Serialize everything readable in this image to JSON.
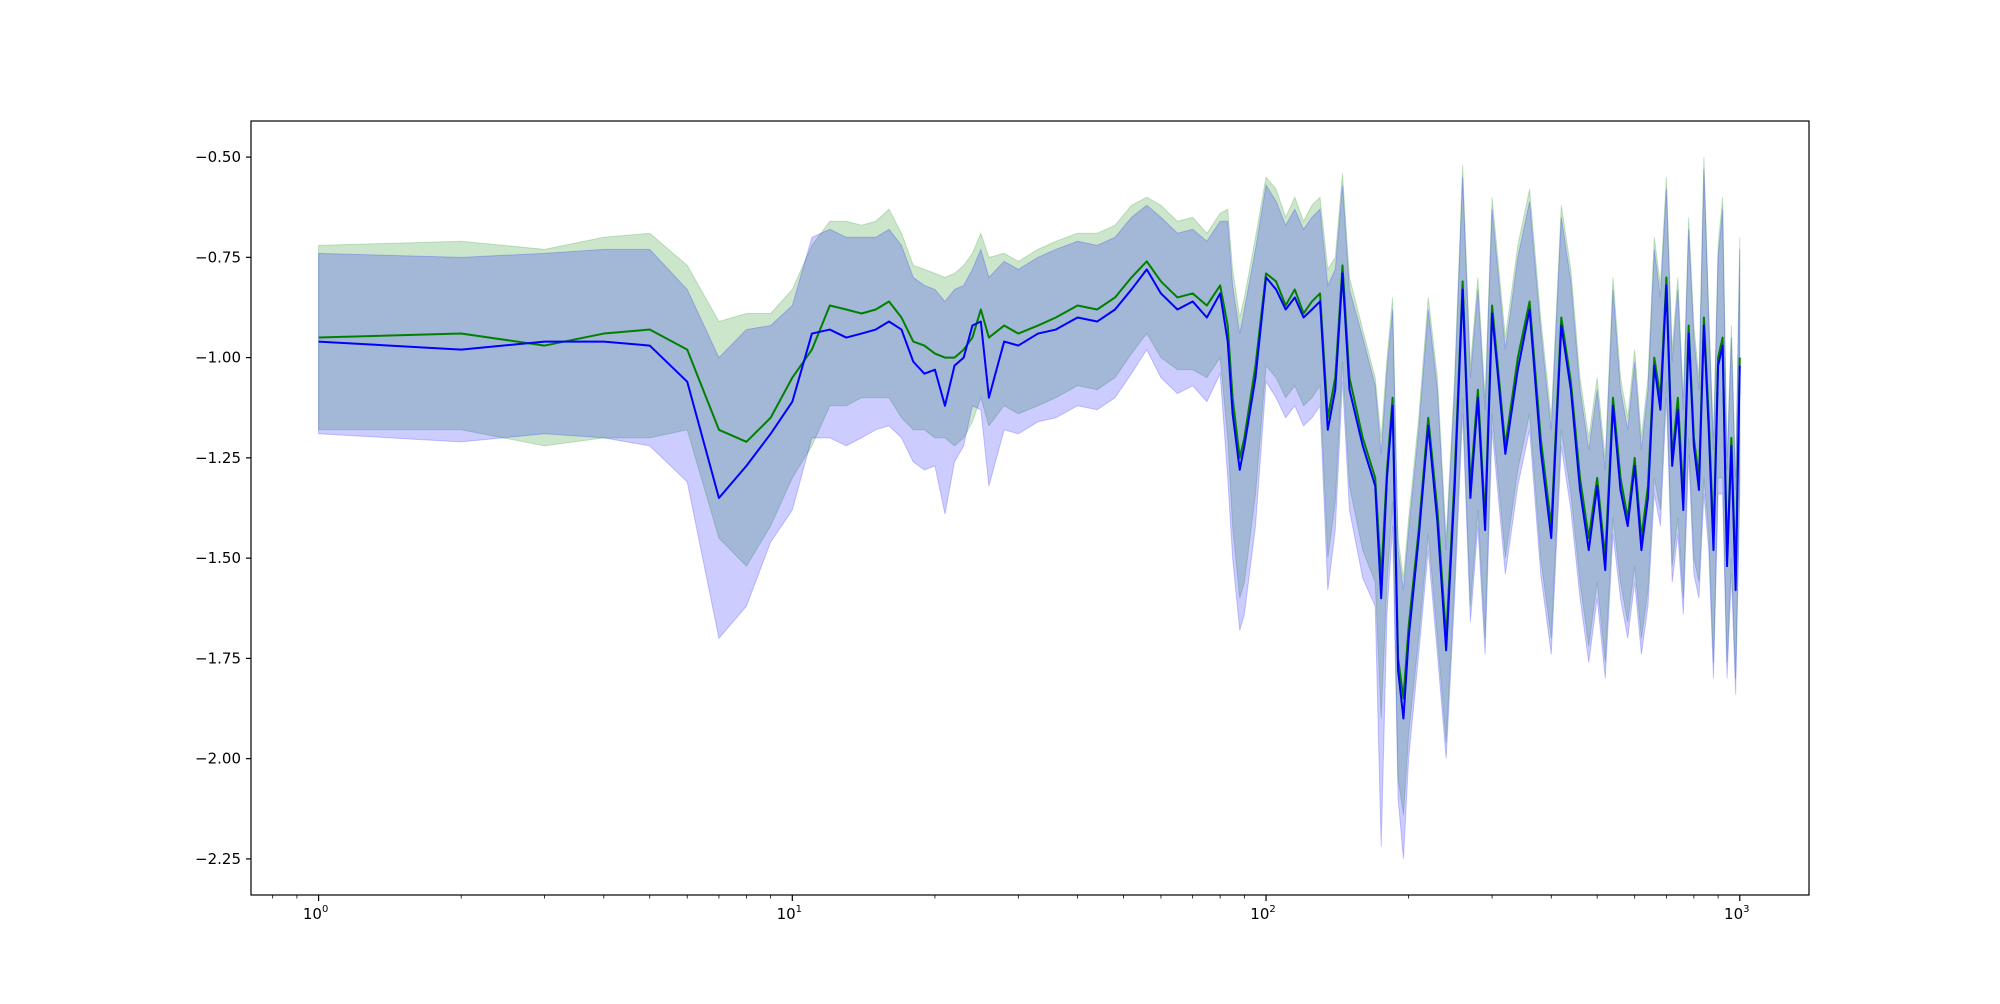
{
  "chart_data": {
    "type": "line",
    "title": "",
    "xlabel": "",
    "ylabel": "",
    "x_scale": "log",
    "xlim": [
      0.72,
      1400
    ],
    "ylim": [
      -2.34,
      -0.41
    ],
    "grid": false,
    "legend": "none",
    "y_ticks": [
      {
        "value": -0.5,
        "label": "−0.50"
      },
      {
        "value": -0.75,
        "label": "−0.75"
      },
      {
        "value": -1.0,
        "label": "−1.00"
      },
      {
        "value": -1.25,
        "label": "−1.25"
      },
      {
        "value": -1.5,
        "label": "−1.50"
      },
      {
        "value": -1.75,
        "label": "−1.75"
      },
      {
        "value": -2.0,
        "label": "−2.00"
      },
      {
        "value": -2.25,
        "label": "−2.25"
      }
    ],
    "x_ticks": [
      {
        "value": 1,
        "base": "10",
        "exp": "0"
      },
      {
        "value": 10,
        "base": "10",
        "exp": "1"
      },
      {
        "value": 100,
        "base": "10",
        "exp": "2"
      },
      {
        "value": 1000,
        "base": "10",
        "exp": "3"
      }
    ],
    "series": [
      {
        "color": "#008000",
        "band_color": "#008000",
        "band_opacity": 0.2,
        "x": [
          1,
          2,
          3,
          4,
          5,
          6,
          7,
          8,
          9,
          10,
          11,
          12,
          13,
          14,
          15,
          16,
          17,
          18,
          19,
          20,
          21,
          22,
          23,
          24,
          25,
          26,
          28,
          30,
          33,
          36,
          40,
          44,
          48,
          52,
          56,
          60,
          65,
          70,
          75,
          80,
          83,
          85,
          88,
          90,
          95,
          100,
          105,
          110,
          115,
          120,
          125,
          130,
          135,
          140,
          145,
          150,
          160,
          170,
          175,
          180,
          185,
          190,
          195,
          200,
          210,
          220,
          230,
          240,
          250,
          260,
          270,
          280,
          290,
          300,
          320,
          340,
          360,
          380,
          400,
          420,
          440,
          460,
          480,
          500,
          520,
          540,
          560,
          580,
          600,
          620,
          640,
          660,
          680,
          700,
          720,
          740,
          760,
          780,
          800,
          820,
          840,
          860,
          880,
          900,
          920,
          940,
          960,
          980,
          1000
        ],
        "y": [
          -0.95,
          -0.94,
          -0.97,
          -0.94,
          -0.93,
          -0.98,
          -1.18,
          -1.21,
          -1.15,
          -1.05,
          -0.98,
          -0.87,
          -0.88,
          -0.89,
          -0.88,
          -0.86,
          -0.9,
          -0.96,
          -0.97,
          -0.99,
          -1.0,
          -1.0,
          -0.98,
          -0.95,
          -0.88,
          -0.95,
          -0.92,
          -0.94,
          -0.92,
          -0.9,
          -0.87,
          -0.88,
          -0.85,
          -0.8,
          -0.76,
          -0.81,
          -0.85,
          -0.84,
          -0.87,
          -0.82,
          -0.92,
          -1.1,
          -1.25,
          -1.2,
          -1.02,
          -0.79,
          -0.81,
          -0.87,
          -0.83,
          -0.89,
          -0.86,
          -0.84,
          -1.15,
          -1.05,
          -0.77,
          -1.05,
          -1.2,
          -1.3,
          -1.55,
          -1.28,
          -1.1,
          -1.75,
          -1.85,
          -1.67,
          -1.43,
          -1.15,
          -1.38,
          -1.7,
          -1.3,
          -0.81,
          -1.32,
          -1.08,
          -1.4,
          -0.87,
          -1.22,
          -1.0,
          -0.86,
          -1.2,
          -1.42,
          -0.9,
          -1.06,
          -1.3,
          -1.45,
          -1.3,
          -1.5,
          -1.1,
          -1.3,
          -1.4,
          -1.25,
          -1.45,
          -1.32,
          -1.0,
          -1.1,
          -0.8,
          -1.25,
          -1.1,
          -1.35,
          -0.92,
          -1.2,
          -1.3,
          -0.9,
          -1.15,
          -1.45,
          -1.0,
          -0.95,
          -1.5,
          -1.2,
          -1.55,
          -1.0
        ],
        "upper": [
          -0.72,
          -0.71,
          -0.73,
          -0.7,
          -0.69,
          -0.77,
          -0.91,
          -0.89,
          -0.89,
          -0.83,
          -0.72,
          -0.66,
          -0.66,
          -0.67,
          -0.66,
          -0.63,
          -0.69,
          -0.77,
          -0.78,
          -0.79,
          -0.8,
          -0.79,
          -0.77,
          -0.74,
          -0.69,
          -0.75,
          -0.74,
          -0.76,
          -0.73,
          -0.71,
          -0.69,
          -0.69,
          -0.67,
          -0.62,
          -0.6,
          -0.62,
          -0.66,
          -0.65,
          -0.69,
          -0.64,
          -0.63,
          -0.78,
          -0.9,
          -0.85,
          -0.7,
          -0.55,
          -0.58,
          -0.65,
          -0.6,
          -0.66,
          -0.62,
          -0.6,
          -0.78,
          -0.75,
          -0.54,
          -0.8,
          -0.93,
          -1.05,
          -1.2,
          -1.0,
          -0.85,
          -1.45,
          -1.55,
          -1.4,
          -1.15,
          -0.85,
          -1.05,
          -1.45,
          -1.05,
          -0.52,
          -1.02,
          -0.8,
          -1.1,
          -0.6,
          -0.95,
          -0.72,
          -0.58,
          -0.9,
          -1.15,
          -0.62,
          -0.78,
          -1.05,
          -1.2,
          -1.05,
          -1.25,
          -0.8,
          -1.05,
          -1.15,
          -0.98,
          -1.2,
          -1.05,
          -0.7,
          -0.82,
          -0.55,
          -0.98,
          -0.8,
          -1.1,
          -0.65,
          -0.92,
          -1.05,
          -0.5,
          -0.88,
          -1.2,
          -0.72,
          -0.6,
          -1.25,
          -0.92,
          -1.3,
          -0.7
        ],
        "lower": [
          -1.18,
          -1.18,
          -1.22,
          -1.2,
          -1.2,
          -1.18,
          -1.45,
          -1.52,
          -1.42,
          -1.3,
          -1.22,
          -1.12,
          -1.12,
          -1.1,
          -1.1,
          -1.1,
          -1.15,
          -1.18,
          -1.18,
          -1.2,
          -1.2,
          -1.22,
          -1.2,
          -1.16,
          -1.1,
          -1.17,
          -1.12,
          -1.14,
          -1.12,
          -1.1,
          -1.07,
          -1.08,
          -1.05,
          -0.99,
          -0.94,
          -1.0,
          -1.03,
          -1.03,
          -1.05,
          -1.0,
          -1.2,
          -1.42,
          -1.6,
          -1.56,
          -1.34,
          -1.02,
          -1.05,
          -1.1,
          -1.07,
          -1.12,
          -1.1,
          -1.07,
          -1.5,
          -1.36,
          -1.01,
          -1.32,
          -1.48,
          -1.56,
          -1.9,
          -1.56,
          -1.36,
          -2.05,
          -2.14,
          -1.94,
          -1.7,
          -1.44,
          -1.7,
          -1.96,
          -1.56,
          -1.1,
          -1.62,
          -1.38,
          -1.7,
          -1.14,
          -1.5,
          -1.28,
          -1.14,
          -1.5,
          -1.7,
          -1.18,
          -1.34,
          -1.56,
          -1.72,
          -1.56,
          -1.76,
          -1.4,
          -1.56,
          -1.66,
          -1.52,
          -1.7,
          -1.58,
          -1.3,
          -1.38,
          -1.06,
          -1.52,
          -1.4,
          -1.6,
          -1.2,
          -1.5,
          -1.56,
          -1.3,
          -1.44,
          -1.76,
          -1.3,
          -1.3,
          -1.76,
          -1.5,
          -1.8,
          -1.3
        ]
      },
      {
        "color": "#0000ff",
        "band_color": "#0000ff",
        "band_opacity": 0.2,
        "x": [
          1,
          2,
          3,
          4,
          5,
          6,
          7,
          8,
          9,
          10,
          11,
          12,
          13,
          14,
          15,
          16,
          17,
          18,
          19,
          20,
          21,
          22,
          23,
          24,
          25,
          26,
          28,
          30,
          33,
          36,
          40,
          44,
          48,
          52,
          56,
          60,
          65,
          70,
          75,
          80,
          83,
          85,
          88,
          90,
          95,
          100,
          105,
          110,
          115,
          120,
          125,
          130,
          135,
          140,
          145,
          150,
          160,
          170,
          175,
          180,
          185,
          190,
          195,
          200,
          210,
          220,
          230,
          240,
          250,
          260,
          270,
          280,
          290,
          300,
          320,
          340,
          360,
          380,
          400,
          420,
          440,
          460,
          480,
          500,
          520,
          540,
          560,
          580,
          600,
          620,
          640,
          660,
          680,
          700,
          720,
          740,
          760,
          780,
          800,
          820,
          840,
          860,
          880,
          900,
          920,
          940,
          960,
          980,
          1000
        ],
        "y": [
          -0.96,
          -0.98,
          -0.96,
          -0.96,
          -0.97,
          -1.06,
          -1.35,
          -1.27,
          -1.19,
          -1.11,
          -0.94,
          -0.93,
          -0.95,
          -0.94,
          -0.93,
          -0.91,
          -0.93,
          -1.01,
          -1.04,
          -1.03,
          -1.12,
          -1.02,
          -1.0,
          -0.92,
          -0.91,
          -1.1,
          -0.96,
          -0.97,
          -0.94,
          -0.93,
          -0.9,
          -0.91,
          -0.88,
          -0.83,
          -0.78,
          -0.84,
          -0.88,
          -0.86,
          -0.9,
          -0.84,
          -0.96,
          -1.14,
          -1.28,
          -1.22,
          -1.05,
          -0.8,
          -0.83,
          -0.88,
          -0.85,
          -0.9,
          -0.88,
          -0.86,
          -1.18,
          -1.08,
          -0.79,
          -1.08,
          -1.22,
          -1.32,
          -1.6,
          -1.3,
          -1.12,
          -1.78,
          -1.9,
          -1.7,
          -1.45,
          -1.17,
          -1.41,
          -1.73,
          -1.33,
          -0.83,
          -1.35,
          -1.1,
          -1.43,
          -0.89,
          -1.24,
          -1.03,
          -0.88,
          -1.23,
          -1.45,
          -0.92,
          -1.08,
          -1.33,
          -1.48,
          -1.32,
          -1.53,
          -1.12,
          -1.33,
          -1.42,
          -1.27,
          -1.48,
          -1.35,
          -1.02,
          -1.13,
          -0.82,
          -1.27,
          -1.13,
          -1.38,
          -0.94,
          -1.22,
          -1.33,
          -0.92,
          -1.18,
          -1.48,
          -1.02,
          -0.97,
          -1.52,
          -1.22,
          -1.58,
          -1.02
        ],
        "upper": [
          -0.74,
          -0.75,
          -0.74,
          -0.73,
          -0.73,
          -0.83,
          -1.0,
          -0.93,
          -0.92,
          -0.87,
          -0.7,
          -0.68,
          -0.7,
          -0.7,
          -0.7,
          -0.68,
          -0.72,
          -0.8,
          -0.82,
          -0.83,
          -0.86,
          -0.83,
          -0.82,
          -0.78,
          -0.73,
          -0.8,
          -0.76,
          -0.78,
          -0.75,
          -0.73,
          -0.71,
          -0.72,
          -0.7,
          -0.65,
          -0.62,
          -0.65,
          -0.69,
          -0.68,
          -0.71,
          -0.66,
          -0.66,
          -0.82,
          -0.94,
          -0.88,
          -0.73,
          -0.57,
          -0.61,
          -0.67,
          -0.63,
          -0.68,
          -0.65,
          -0.63,
          -0.82,
          -0.78,
          -0.57,
          -0.83,
          -0.95,
          -1.07,
          -1.24,
          -1.03,
          -0.88,
          -1.48,
          -1.58,
          -1.43,
          -1.18,
          -0.88,
          -1.08,
          -1.48,
          -1.08,
          -0.55,
          -1.05,
          -0.83,
          -1.13,
          -0.63,
          -0.98,
          -0.75,
          -0.61,
          -0.93,
          -1.18,
          -0.65,
          -0.81,
          -1.08,
          -1.23,
          -1.08,
          -1.28,
          -0.83,
          -1.08,
          -1.18,
          -1.01,
          -1.23,
          -1.08,
          -0.73,
          -0.85,
          -0.58,
          -1.01,
          -0.83,
          -1.13,
          -0.68,
          -0.95,
          -1.08,
          -0.53,
          -0.91,
          -1.23,
          -0.75,
          -0.63,
          -1.28,
          -0.95,
          -1.33,
          -0.73
        ],
        "lower": [
          -1.19,
          -1.21,
          -1.19,
          -1.2,
          -1.22,
          -1.31,
          -1.7,
          -1.62,
          -1.46,
          -1.38,
          -1.2,
          -1.2,
          -1.22,
          -1.2,
          -1.18,
          -1.17,
          -1.2,
          -1.26,
          -1.28,
          -1.27,
          -1.39,
          -1.26,
          -1.22,
          -1.12,
          -1.13,
          -1.32,
          -1.18,
          -1.19,
          -1.16,
          -1.15,
          -1.12,
          -1.13,
          -1.1,
          -1.04,
          -0.98,
          -1.05,
          -1.09,
          -1.07,
          -1.11,
          -1.04,
          -1.3,
          -1.5,
          -1.68,
          -1.64,
          -1.42,
          -1.06,
          -1.1,
          -1.15,
          -1.12,
          -1.17,
          -1.15,
          -1.12,
          -1.58,
          -1.43,
          -1.06,
          -1.38,
          -1.55,
          -1.62,
          -2.22,
          -1.64,
          -1.42,
          -2.1,
          -2.25,
          -2.0,
          -1.74,
          -1.48,
          -1.74,
          -2.0,
          -1.6,
          -1.14,
          -1.66,
          -1.42,
          -1.74,
          -1.18,
          -1.54,
          -1.32,
          -1.18,
          -1.54,
          -1.74,
          -1.22,
          -1.38,
          -1.6,
          -1.76,
          -1.6,
          -1.8,
          -1.44,
          -1.6,
          -1.7,
          -1.56,
          -1.74,
          -1.62,
          -1.34,
          -1.42,
          -1.1,
          -1.56,
          -1.44,
          -1.64,
          -1.24,
          -1.54,
          -1.6,
          -1.34,
          -1.48,
          -1.8,
          -1.34,
          -1.34,
          -1.8,
          -1.54,
          -1.84,
          -1.34
        ]
      }
    ]
  }
}
